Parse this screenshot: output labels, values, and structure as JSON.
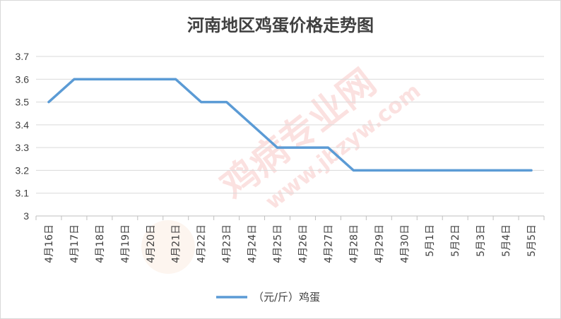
{
  "chart_data": {
    "type": "line",
    "title": "河南地区鸡蛋价格走势图",
    "categories": [
      "4月16日",
      "4月17日",
      "4月18日",
      "4月19日",
      "4月20日",
      "4月21日",
      "4月22日",
      "4月23日",
      "4月24日",
      "4月25日",
      "4月26日",
      "4月27日",
      "4月28日",
      "4月29日",
      "4月30日",
      "5月1日",
      "5月2日",
      "5月3日",
      "5月4日",
      "5月5日"
    ],
    "series": [
      {
        "name": "（元/斤）鸡蛋",
        "color": "#5b9bd5",
        "values": [
          3.5,
          3.6,
          3.6,
          3.6,
          3.6,
          3.6,
          3.5,
          3.5,
          3.4,
          3.3,
          3.3,
          3.3,
          3.2,
          3.2,
          3.2,
          3.2,
          3.2,
          3.2,
          3.2,
          3.2
        ]
      }
    ],
    "yticks": [
      "3",
      "3.1",
      "3.2",
      "3.3",
      "3.4",
      "3.5",
      "3.6",
      "3.7"
    ],
    "ylim": [
      3,
      3.7
    ],
    "xlabel": "",
    "ylabel": "",
    "grid": true,
    "legend": "bottom"
  },
  "watermark": {
    "brand": "鸡病专业网",
    "url": "www.jbzyw.com",
    "color": "#e8312b"
  }
}
